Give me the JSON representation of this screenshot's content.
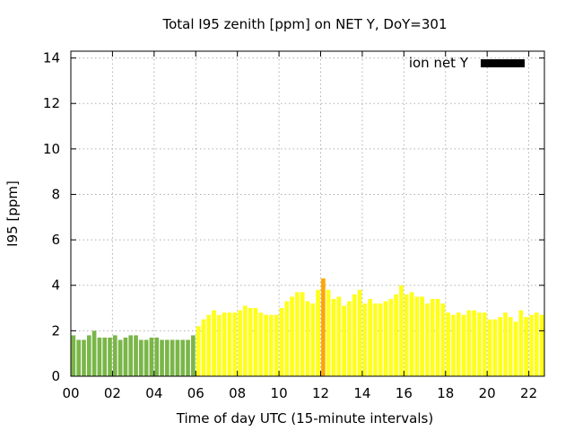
{
  "chart_data": {
    "type": "bar",
    "title": "Total I95 zenith [ppm] on NET Y, DoY=301",
    "xlabel": "Time of day UTC (15-minute intervals)",
    "ylabel": "I95 [ppm]",
    "xlim": [
      0,
      22.75
    ],
    "ylim": [
      0,
      14.3
    ],
    "grid": true,
    "legend": {
      "position": "top-right",
      "label": "ion net Y",
      "color": "#000000"
    },
    "x_ticks": [
      "00",
      "02",
      "04",
      "06",
      "08",
      "10",
      "12",
      "14",
      "16",
      "18",
      "20",
      "22"
    ],
    "y_ticks": [
      "0",
      "2",
      "4",
      "6",
      "8",
      "10",
      "12",
      "14"
    ],
    "colors": {
      "green": "#7ab648",
      "yellow": "#ffff1a",
      "orange": "#ffa500"
    },
    "interval_hours": 0.25,
    "values": [
      1.8,
      1.6,
      1.6,
      1.8,
      2.0,
      1.7,
      1.7,
      1.7,
      1.8,
      1.6,
      1.7,
      1.8,
      1.8,
      1.6,
      1.6,
      1.7,
      1.7,
      1.6,
      1.6,
      1.6,
      1.6,
      1.6,
      1.6,
      1.8,
      2.2,
      2.5,
      2.7,
      2.9,
      2.7,
      2.8,
      2.8,
      2.8,
      2.9,
      3.1,
      3.0,
      3.0,
      2.8,
      2.7,
      2.7,
      2.7,
      3.0,
      3.3,
      3.5,
      3.7,
      3.7,
      3.3,
      3.2,
      3.8,
      4.3,
      3.8,
      3.4,
      3.5,
      3.1,
      3.3,
      3.6,
      3.8,
      3.2,
      3.4,
      3.2,
      3.2,
      3.3,
      3.4,
      3.6,
      4.0,
      3.6,
      3.7,
      3.5,
      3.5,
      3.2,
      3.4,
      3.4,
      3.2,
      2.8,
      2.7,
      2.8,
      2.7,
      2.9,
      2.9,
      2.8,
      2.8,
      2.5,
      2.5,
      2.6,
      2.8,
      2.6,
      2.4,
      2.9,
      2.6,
      2.7,
      2.8,
      2.7
    ],
    "bar_colors": [
      "green",
      "green",
      "green",
      "green",
      "green",
      "green",
      "green",
      "green",
      "green",
      "green",
      "green",
      "green",
      "green",
      "green",
      "green",
      "green",
      "green",
      "green",
      "green",
      "green",
      "green",
      "green",
      "green",
      "green",
      "yellow",
      "yellow",
      "yellow",
      "yellow",
      "yellow",
      "yellow",
      "yellow",
      "yellow",
      "yellow",
      "yellow",
      "yellow",
      "yellow",
      "yellow",
      "yellow",
      "yellow",
      "yellow",
      "yellow",
      "yellow",
      "yellow",
      "yellow",
      "yellow",
      "yellow",
      "yellow",
      "yellow",
      "orange",
      "yellow",
      "yellow",
      "yellow",
      "yellow",
      "yellow",
      "yellow",
      "yellow",
      "yellow",
      "yellow",
      "yellow",
      "yellow",
      "yellow",
      "yellow",
      "yellow",
      "yellow",
      "yellow",
      "yellow",
      "yellow",
      "yellow",
      "yellow",
      "yellow",
      "yellow",
      "yellow",
      "yellow",
      "yellow",
      "yellow",
      "yellow",
      "yellow",
      "yellow",
      "yellow",
      "yellow",
      "yellow",
      "yellow",
      "yellow",
      "yellow",
      "yellow",
      "yellow",
      "yellow",
      "yellow",
      "yellow",
      "yellow",
      "yellow"
    ]
  }
}
